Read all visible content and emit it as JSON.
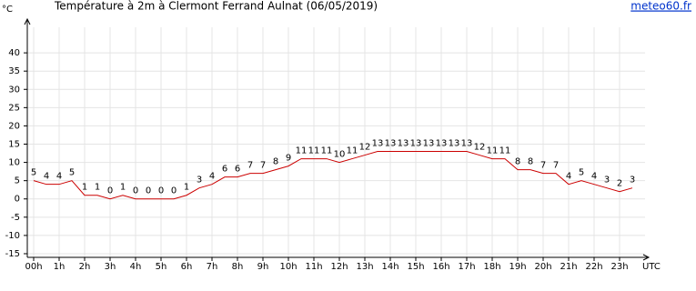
{
  "chart_data": {
    "type": "line",
    "title": "Température à 2m à Clermont Ferrand Aulnat (06/05/2019)",
    "source": "meteo60.fr",
    "ylabel": "°C",
    "xlabel": "UTC",
    "x": [
      0,
      0.5,
      1,
      1.5,
      2,
      2.5,
      3,
      3.5,
      4,
      4.5,
      5,
      5.5,
      6,
      6.5,
      7,
      7.5,
      8,
      8.5,
      9,
      9.5,
      10,
      10.5,
      11,
      11.5,
      12,
      12.5,
      13,
      13.5,
      14,
      14.5,
      15,
      15.5,
      16,
      16.5,
      17,
      17.5,
      18,
      18.5,
      19,
      19.5,
      20,
      20.5,
      21,
      21.5,
      22,
      22.5,
      23,
      23.5
    ],
    "series": [
      {
        "name": "Température",
        "color": "#cc0000",
        "values": [
          5,
          4,
          4,
          5,
          1,
          1,
          0,
          1,
          0,
          0,
          0,
          0,
          1,
          3,
          4,
          6,
          6,
          7,
          7,
          8,
          9,
          11,
          11,
          11,
          10,
          11,
          12,
          13,
          13,
          13,
          13,
          13,
          13,
          13,
          13,
          12,
          11,
          11,
          8,
          8,
          7,
          7,
          4,
          5,
          4,
          3,
          2,
          3
        ]
      }
    ],
    "xlim": [
      -0.25,
      24
    ],
    "xticks": [
      {
        "value": 0,
        "label": "00h"
      },
      {
        "value": 1,
        "label": "1h"
      },
      {
        "value": 2,
        "label": "2h"
      },
      {
        "value": 3,
        "label": "3h"
      },
      {
        "value": 4,
        "label": "4h"
      },
      {
        "value": 5,
        "label": "5h"
      },
      {
        "value": 6,
        "label": "6h"
      },
      {
        "value": 7,
        "label": "7h"
      },
      {
        "value": 8,
        "label": "8h"
      },
      {
        "value": 9,
        "label": "9h"
      },
      {
        "value": 10,
        "label": "10h"
      },
      {
        "value": 11,
        "label": "11h"
      },
      {
        "value": 12,
        "label": "12h"
      },
      {
        "value": 13,
        "label": "13h"
      },
      {
        "value": 14,
        "label": "14h"
      },
      {
        "value": 15,
        "label": "15h"
      },
      {
        "value": 16,
        "label": "16h"
      },
      {
        "value": 17,
        "label": "17h"
      },
      {
        "value": 18,
        "label": "18h"
      },
      {
        "value": 19,
        "label": "19h"
      },
      {
        "value": 20,
        "label": "20h"
      },
      {
        "value": 21,
        "label": "21h"
      },
      {
        "value": 22,
        "label": "22h"
      },
      {
        "value": 23,
        "label": "23h"
      }
    ],
    "ylim": [
      -16,
      47
    ],
    "yticks": [
      -15,
      -10,
      -5,
      0,
      5,
      10,
      15,
      20,
      25,
      30,
      35,
      40
    ],
    "grid": true
  }
}
